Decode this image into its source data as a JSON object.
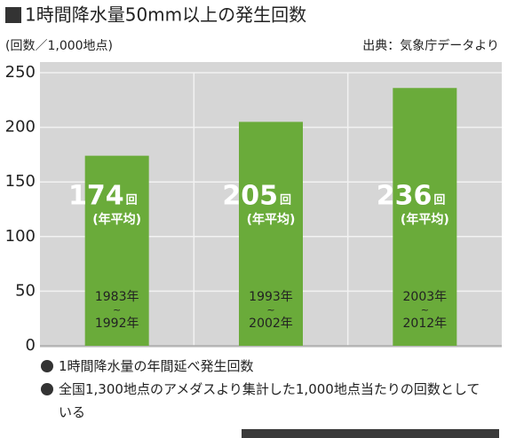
{
  "chart_data": {
    "type": "bar",
    "title": "1時間降水量50mm以上の発生回数",
    "y_label": "(回数／1,000地点)",
    "source": "出典：気象庁データより",
    "categories": [
      [
        "1983年",
        "~",
        "1992年"
      ],
      [
        "1993年",
        "~",
        "2002年"
      ],
      [
        "2003年",
        "~",
        "2012年"
      ]
    ],
    "values": [
      174,
      205,
      236
    ],
    "value_unit": "回",
    "value_note": "(年平均)",
    "color": "#6aab3a",
    "ylim": [
      0,
      250
    ],
    "yticks": [
      0,
      50,
      100,
      150,
      200,
      250
    ],
    "grid": true,
    "notes": [
      "1時間降水量の年間延べ発生回数",
      "全国1,300地点のアメダスより集計した1,000地点当たりの回数としている"
    ]
  }
}
